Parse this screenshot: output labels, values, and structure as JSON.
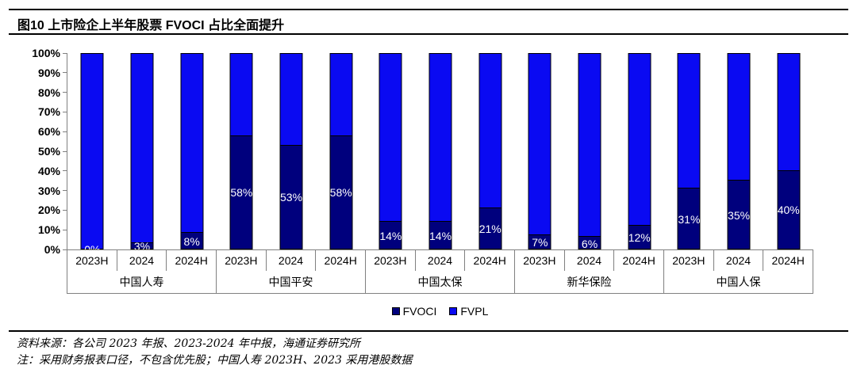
{
  "title": {
    "figure_label": "图10",
    "underlined_text": "上市险企上半年股票",
    "suffix_text": " FVOCI 占比全面提升"
  },
  "chart_data": {
    "type": "bar",
    "stacked": true,
    "title": "上市险企上半年股票 FVOCI 占比全面提升",
    "groups": [
      "中国人寿",
      "中国平安",
      "中国太保",
      "新华保险",
      "中国人保"
    ],
    "periods": [
      "2023H",
      "2024",
      "2024H"
    ],
    "series": [
      {
        "name": "FVOCI",
        "color": "#00007d",
        "values_pct": [
          [
            0,
            3,
            8
          ],
          [
            58,
            53,
            58
          ],
          [
            14,
            14,
            21
          ],
          [
            7,
            6,
            12
          ],
          [
            31,
            35,
            40
          ]
        ]
      },
      {
        "name": "FVPL",
        "color": "#0a0af2",
        "values_pct": [
          [
            100,
            97,
            92
          ],
          [
            42,
            47,
            42
          ],
          [
            86,
            86,
            79
          ],
          [
            93,
            94,
            88
          ],
          [
            69,
            65,
            60
          ]
        ]
      }
    ],
    "bar_labels": [
      [
        "0%",
        "3%",
        "8%"
      ],
      [
        "58%",
        "53%",
        "58%"
      ],
      [
        "14%",
        "14%",
        "21%"
      ],
      [
        "7%",
        "6%",
        "12%"
      ],
      [
        "31%",
        "35%",
        "40%"
      ]
    ],
    "y_ticks": [
      "100%",
      "90%",
      "80%",
      "70%",
      "60%",
      "50%",
      "40%",
      "30%",
      "20%",
      "10%",
      "0%"
    ],
    "ylim": [
      0,
      100
    ],
    "grid": false,
    "legend_position": "bottom",
    "legend": [
      {
        "label": "FVOCI",
        "color": "#00007d"
      },
      {
        "label": "FVPL",
        "color": "#0a0af2"
      }
    ]
  },
  "footer": {
    "source": "资料来源：各公司 2023 年报、2023-2024 年中报，海通证券研究所",
    "note": "注：采用财务报表口径，不包含优先股；中国人寿 2023H、2023 采用港股数据"
  },
  "colors": {
    "fvoci": "#00007d",
    "fvpl": "#0a0af2",
    "axis_line": "#808080",
    "bar_border": "#000000",
    "underline": "#3b5bdb"
  }
}
